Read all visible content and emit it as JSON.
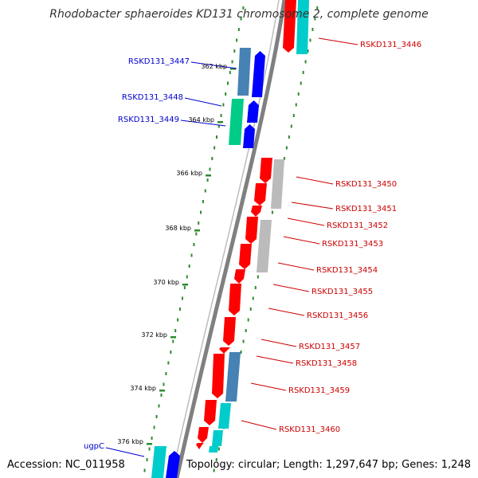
{
  "title": "Rhodobacter sphaeroides KD131 chromosome 2, complete genome",
  "footer": {
    "accession": "Accession: NC_011958",
    "summary": "Topology: circular; Length: 1,297,647 bp; Genes: 1,248"
  },
  "colors": {
    "backbone": "#808080",
    "tick_minor": "#2e8b2e",
    "tick_major": "#2e8b2e",
    "forward_label": "#0000cc",
    "reverse_label": "#cc0000",
    "gene_red": "#ff0000",
    "gene_blue": "#0000ff",
    "gene_steel": "#4682b4",
    "gene_cyan": "#00cccc",
    "gene_green": "#00cc88",
    "gene_gray": "#bbbbbb"
  },
  "kbp_marks": [
    {
      "label": "362 kbp"
    },
    {
      "label": "364 kbp"
    },
    {
      "label": "366 kbp"
    },
    {
      "label": "368 kbp"
    },
    {
      "label": "370 kbp"
    },
    {
      "label": "372 kbp"
    },
    {
      "label": "374 kbp"
    },
    {
      "label": "376 kbp"
    }
  ],
  "forward_labels": [
    {
      "text": "RSKD131_3447"
    },
    {
      "text": "RSKD131_3448"
    },
    {
      "text": "RSKD131_3449"
    },
    {
      "text": "ugpC"
    }
  ],
  "reverse_labels": [
    {
      "text": "RSKD131_3446"
    },
    {
      "text": "RSKD131_3450"
    },
    {
      "text": "RSKD131_3451"
    },
    {
      "text": "RSKD131_3452"
    },
    {
      "text": "RSKD131_3453"
    },
    {
      "text": "RSKD131_3454"
    },
    {
      "text": "RSKD131_3455"
    },
    {
      "text": "RSKD131_3456"
    },
    {
      "text": "RSKD131_3457"
    },
    {
      "text": "RSKD131_3458"
    },
    {
      "text": "RSKD131_3459"
    },
    {
      "text": "RSKD131_3460"
    }
  ]
}
